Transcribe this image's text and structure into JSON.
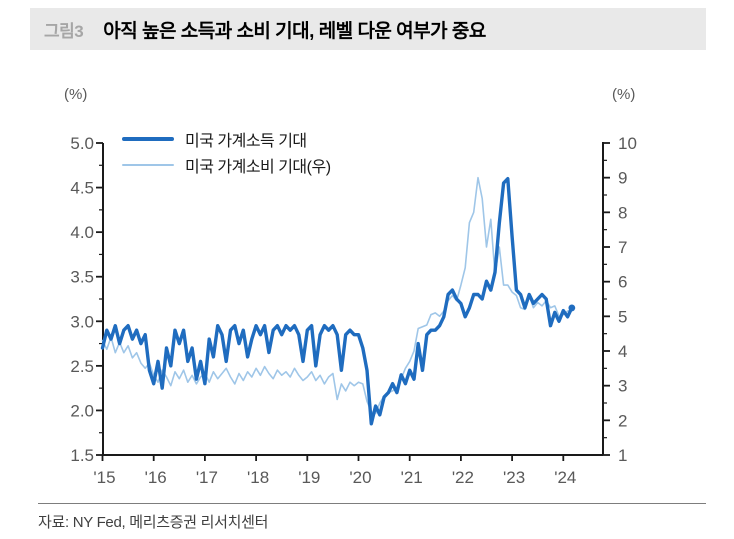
{
  "header": {
    "figure_label": "그림3",
    "title": "아직 높은 소득과 소비 기대, 레벨 다운 여부가 중요"
  },
  "source": "자료: NY Fed, 메리츠증권 리서치센터",
  "colors": {
    "income_line": "#1f6cbf",
    "spending_line": "#9fc6e8",
    "axis": "#1a1a1a",
    "tick_label": "#595959",
    "header_bg": "#e9e9e9"
  },
  "chart_data": {
    "type": "line",
    "title": "",
    "grid": false,
    "legend_position": "top-left",
    "x_unit": "month",
    "x_start": "2015-01",
    "x_end": "2024-03",
    "x_tick_labels": [
      "'15",
      "'16",
      "'17",
      "'18",
      "'19",
      "'20",
      "'21",
      "'22",
      "'23",
      "'24"
    ],
    "left_axis": {
      "unit_label": "(%)",
      "min": 1.5,
      "max": 5.0,
      "tick_step": 0.5,
      "minor_tick_step": 0.25,
      "tick_labels": [
        "5.0",
        "4.5",
        "4.0",
        "3.5",
        "3.0",
        "2.5",
        "2.0",
        "1.5"
      ]
    },
    "right_axis": {
      "unit_label": "(%)",
      "min": 1,
      "max": 10,
      "tick_step": 1,
      "minor_tick_step": 0.5,
      "tick_labels": [
        "10",
        "9",
        "8",
        "7",
        "6",
        "5",
        "4",
        "3",
        "2",
        "1"
      ]
    },
    "series": [
      {
        "name": "미국 가계소득 기대",
        "axis": "left",
        "color": "#1f6cbf",
        "line_width": 3.4,
        "end_marker": true,
        "values": [
          2.7,
          2.9,
          2.8,
          2.95,
          2.75,
          2.9,
          2.95,
          2.8,
          2.9,
          2.75,
          2.85,
          2.45,
          2.3,
          2.55,
          2.25,
          2.7,
          2.5,
          2.9,
          2.75,
          2.9,
          2.55,
          2.7,
          2.35,
          2.55,
          2.3,
          2.8,
          2.6,
          2.95,
          2.85,
          2.55,
          2.9,
          2.95,
          2.75,
          2.9,
          2.6,
          2.8,
          2.95,
          2.85,
          2.95,
          2.65,
          2.9,
          2.95,
          2.85,
          2.95,
          2.9,
          2.95,
          2.85,
          2.55,
          2.9,
          2.95,
          2.5,
          2.85,
          2.95,
          2.9,
          2.95,
          2.85,
          2.45,
          2.85,
          2.9,
          2.85,
          2.85,
          2.7,
          2.45,
          1.85,
          2.05,
          1.95,
          2.15,
          2.2,
          2.3,
          2.2,
          2.4,
          2.3,
          2.45,
          2.35,
          2.75,
          2.45,
          2.85,
          2.9,
          2.9,
          2.95,
          3.05,
          3.3,
          3.35,
          3.25,
          3.2,
          3.05,
          3.15,
          3.3,
          3.3,
          3.25,
          3.45,
          3.35,
          3.55,
          4.1,
          4.55,
          4.6,
          3.95,
          3.35,
          3.3,
          3.15,
          3.3,
          3.2,
          3.25,
          3.3,
          3.25,
          2.95,
          3.1,
          3.0,
          3.12,
          3.05,
          3.15
        ]
      },
      {
        "name": "미국 가계소비 기대(우)",
        "axis": "right",
        "color": "#9fc6e8",
        "line_width": 1.6,
        "end_marker": false,
        "values": [
          4.3,
          4.05,
          4.4,
          3.95,
          4.25,
          3.95,
          4.15,
          3.8,
          3.95,
          3.65,
          3.5,
          3.65,
          3.3,
          3.1,
          3.45,
          3.25,
          3.0,
          3.4,
          3.2,
          3.45,
          3.1,
          3.3,
          3.05,
          3.25,
          3.35,
          3.1,
          3.4,
          3.2,
          3.35,
          3.5,
          3.25,
          3.05,
          3.35,
          3.15,
          3.4,
          3.25,
          3.5,
          3.3,
          3.55,
          3.35,
          3.2,
          3.45,
          3.3,
          3.4,
          3.25,
          3.5,
          3.3,
          3.15,
          3.25,
          3.4,
          3.15,
          3.3,
          3.05,
          3.25,
          3.35,
          2.6,
          3.05,
          2.85,
          3.1,
          3.0,
          3.1,
          3.05,
          2.55,
          2.25,
          2.2,
          2.5,
          2.7,
          2.8,
          2.85,
          2.95,
          3.2,
          3.5,
          3.7,
          4.0,
          4.65,
          4.7,
          4.75,
          5.05,
          5.1,
          5.0,
          5.15,
          5.45,
          5.6,
          5.45,
          5.9,
          6.4,
          7.7,
          8.0,
          9.0,
          8.4,
          7.0,
          7.8,
          6.2,
          7.0,
          5.9,
          5.9,
          5.7,
          5.6,
          5.25,
          5.2,
          5.6,
          5.25,
          5.4,
          5.3,
          5.45,
          5.25,
          5.3,
          5.0,
          5.05,
          5.15,
          5.2
        ]
      }
    ]
  }
}
